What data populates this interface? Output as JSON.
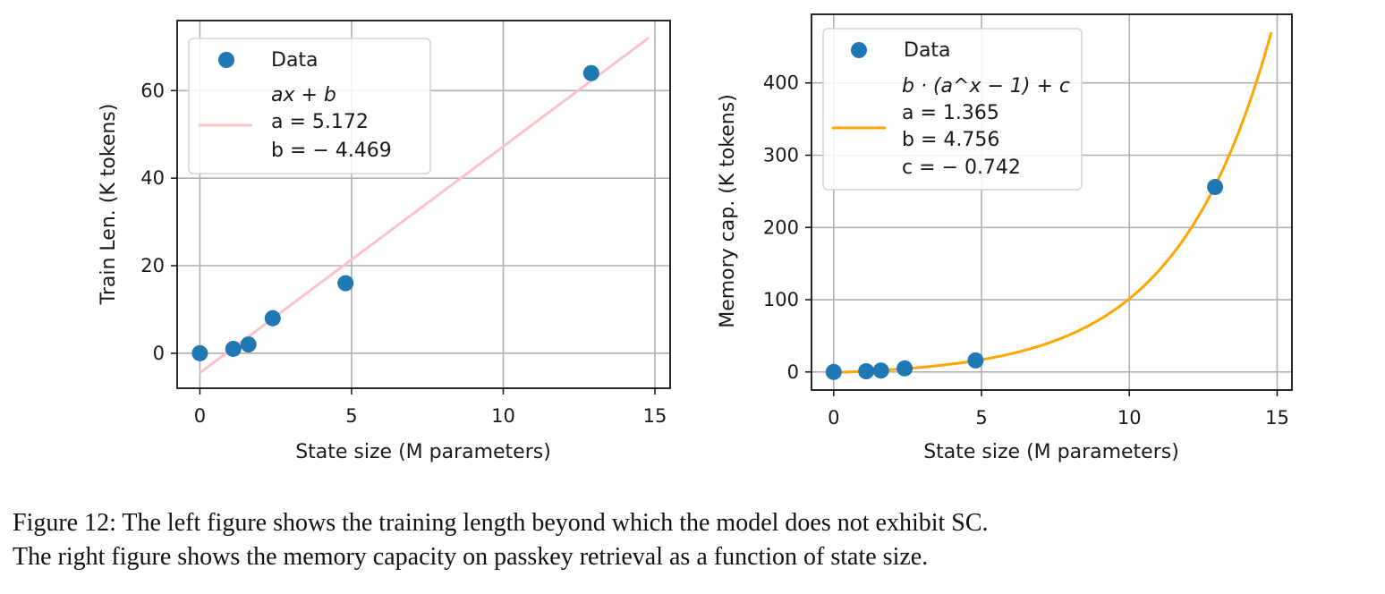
{
  "chart_data": [
    {
      "type": "scatter",
      "xlabel": "State size (M parameters)",
      "ylabel": "Train Len. (K tokens)",
      "xlim": [
        -0.75,
        15.5
      ],
      "ylim": [
        -8,
        76
      ],
      "xticks": [
        0,
        5,
        10,
        15
      ],
      "yticks": [
        0,
        20,
        40,
        60
      ],
      "xtick_labels": [
        "0",
        "5",
        "10",
        "15"
      ],
      "ytick_labels": [
        "0",
        "20",
        "40",
        "60"
      ],
      "grid": true,
      "legend_position": "top-left",
      "series": [
        {
          "name": "Data",
          "kind": "scatter",
          "color": "#1f77b4",
          "x": [
            0,
            1.1,
            1.6,
            2.4,
            4.8,
            12.9
          ],
          "y": [
            0,
            1,
            2,
            8,
            16,
            64
          ]
        },
        {
          "kind": "line",
          "color": "#ffc0cb",
          "formula": "linear",
          "params": {
            "a": 5.172,
            "b": -4.469
          },
          "x_range": [
            0,
            14.8
          ]
        }
      ],
      "legend": {
        "data_label": "Data",
        "fit_lines": [
          "ax + b",
          "a = 5.172",
          "b = − 4.469"
        ]
      }
    },
    {
      "type": "scatter",
      "xlabel": "State size (M parameters)",
      "ylabel": "Memory cap. (K tokens)",
      "xlim": [
        -0.75,
        15.5
      ],
      "ylim": [
        -25,
        495
      ],
      "xticks": [
        0,
        5,
        10,
        15
      ],
      "yticks": [
        0,
        100,
        200,
        300,
        400
      ],
      "xtick_labels": [
        "0",
        "5",
        "10",
        "15"
      ],
      "ytick_labels": [
        "0",
        "100",
        "200",
        "300",
        "400"
      ],
      "grid": true,
      "legend_position": "top-left",
      "series": [
        {
          "name": "Data",
          "kind": "scatter",
          "color": "#1f77b4",
          "x": [
            0,
            1.1,
            1.6,
            2.4,
            4.8,
            12.9
          ],
          "y": [
            0,
            1,
            2,
            5,
            16,
            256
          ]
        },
        {
          "kind": "line",
          "color": "#ffa500",
          "formula": "exponential",
          "params": {
            "a": 1.365,
            "b": 4.756,
            "c": -0.742
          },
          "x_range": [
            0,
            14.8
          ]
        }
      ],
      "legend": {
        "data_label": "Data",
        "fit_lines": [
          "b · (a^x − 1) + c",
          "a = 1.365",
          "b = 4.756",
          "c = − 0.742"
        ]
      }
    }
  ],
  "caption": {
    "line1": "Figure 12: The left figure shows the training length beyond which the model does not exhibit SC.",
    "line2": "The right figure shows the memory capacity on passkey retrieval as a function of state size."
  }
}
